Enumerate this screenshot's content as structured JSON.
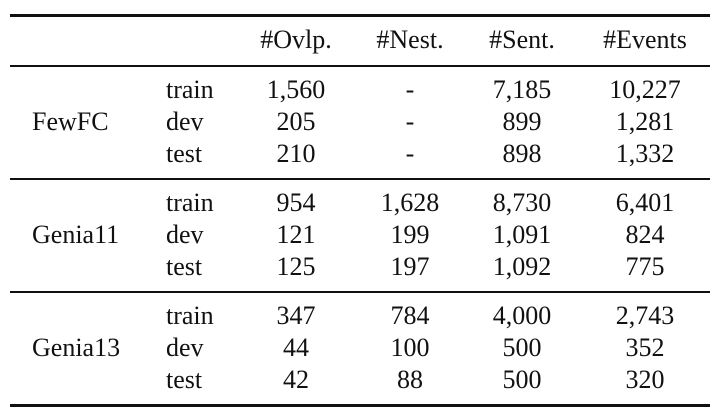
{
  "table": {
    "columns": [
      "",
      "",
      "#Ovlp.",
      "#Nest.",
      "#Sent.",
      "#Events"
    ],
    "groups": [
      {
        "dataset": "FewFC",
        "rows": [
          {
            "split": "train",
            "ovlp": "1,560",
            "nest": "-",
            "sent": "7,185",
            "events": "10,227"
          },
          {
            "split": "dev",
            "ovlp": "205",
            "nest": "-",
            "sent": "899",
            "events": "1,281"
          },
          {
            "split": "test",
            "ovlp": "210",
            "nest": "-",
            "sent": "898",
            "events": "1,332"
          }
        ]
      },
      {
        "dataset": "Genia11",
        "rows": [
          {
            "split": "train",
            "ovlp": "954",
            "nest": "1,628",
            "sent": "8,730",
            "events": "6,401"
          },
          {
            "split": "dev",
            "ovlp": "121",
            "nest": "199",
            "sent": "1,091",
            "events": "824"
          },
          {
            "split": "test",
            "ovlp": "125",
            "nest": "197",
            "sent": "1,092",
            "events": "775"
          }
        ]
      },
      {
        "dataset": "Genia13",
        "rows": [
          {
            "split": "train",
            "ovlp": "347",
            "nest": "784",
            "sent": "4,000",
            "events": "2,743"
          },
          {
            "split": "dev",
            "ovlp": "44",
            "nest": "100",
            "sent": "500",
            "events": "352"
          },
          {
            "split": "test",
            "ovlp": "42",
            "nest": "88",
            "sent": "500",
            "events": "320"
          }
        ]
      }
    ]
  }
}
